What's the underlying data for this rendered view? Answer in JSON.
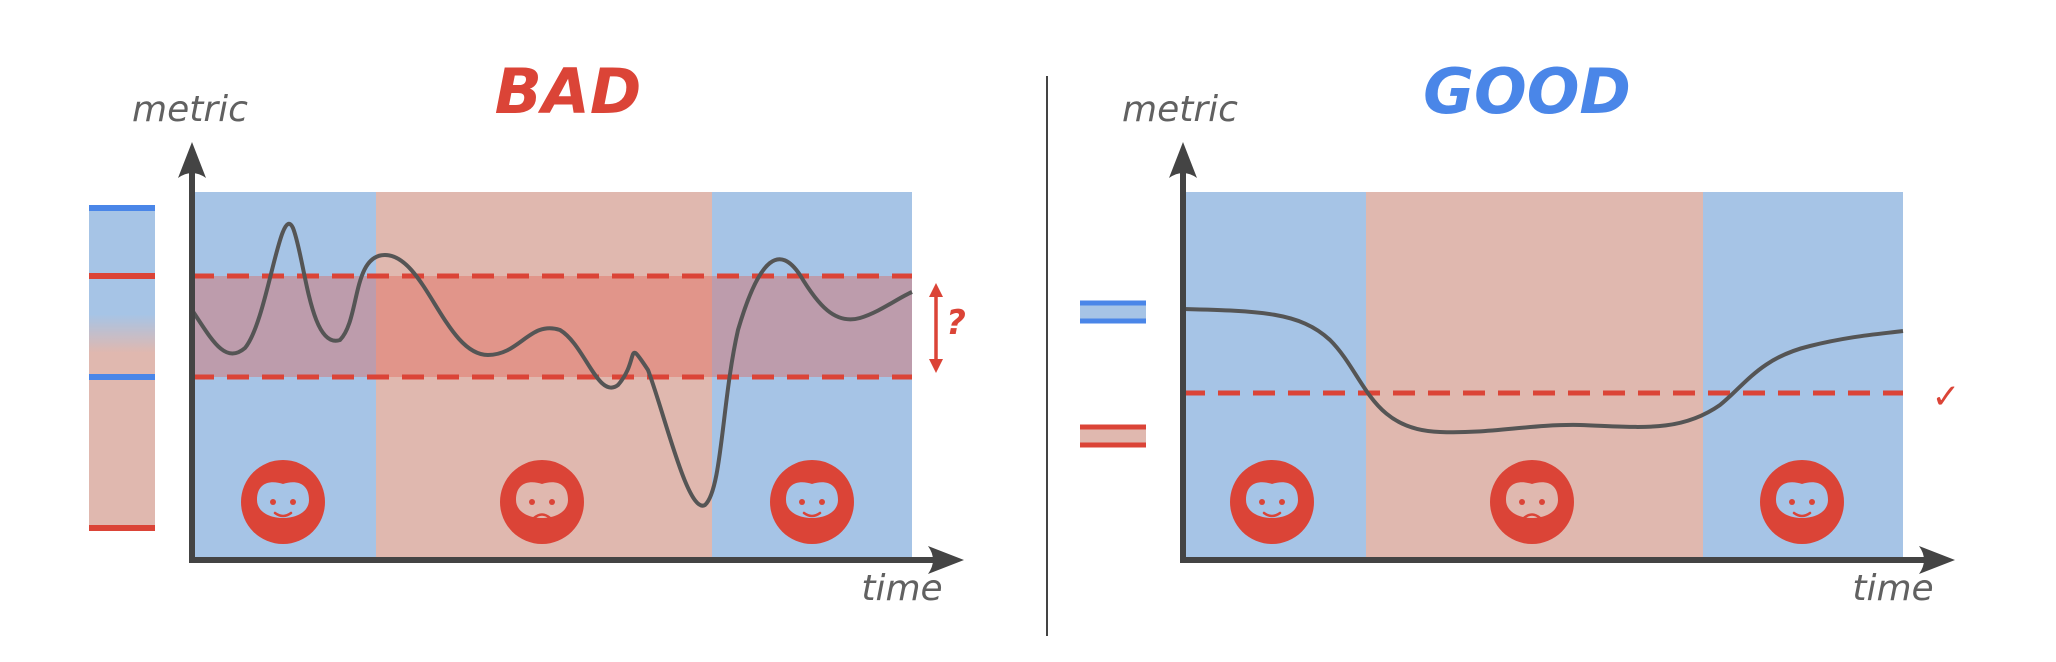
{
  "panels": {
    "bad": {
      "title": "BAD",
      "y_axis_label": "metric",
      "x_axis_label": "time",
      "question_mark": "?"
    },
    "good": {
      "title": "GOOD",
      "y_axis_label": "metric",
      "x_axis_label": "time",
      "check_mark": "✓"
    }
  },
  "colors": {
    "bad_red": "#db4437",
    "good_blue": "#4a86e8",
    "happy_region": "#a6c4e6",
    "sad_region": "#e0b8af",
    "overlap_band": "#e25c50",
    "curve": "#555555",
    "axis": "#444444"
  },
  "regions": [
    "happy",
    "sad",
    "happy"
  ],
  "faces": [
    "happy-face-icon",
    "sad-face-icon",
    "happy-face-icon"
  ]
}
